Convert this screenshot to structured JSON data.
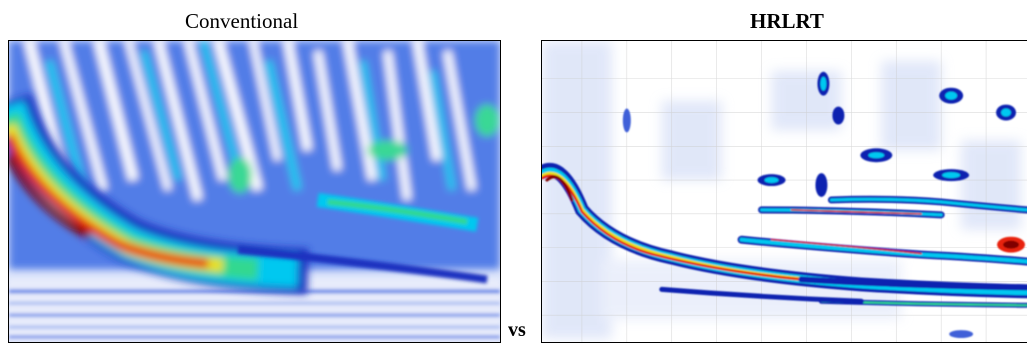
{
  "figure": {
    "left_panel": {
      "title": "Conventional"
    },
    "right_panel": {
      "title": "HRLRT"
    },
    "separator_label": "vs"
  },
  "colors": {
    "background": "#ffffff",
    "colormap": [
      "#ffffff",
      "#c8d4f4",
      "#4060d8",
      "#1020b0",
      "#00c8f0",
      "#30d890",
      "#e8e020",
      "#e82010",
      "#800000"
    ]
  }
}
